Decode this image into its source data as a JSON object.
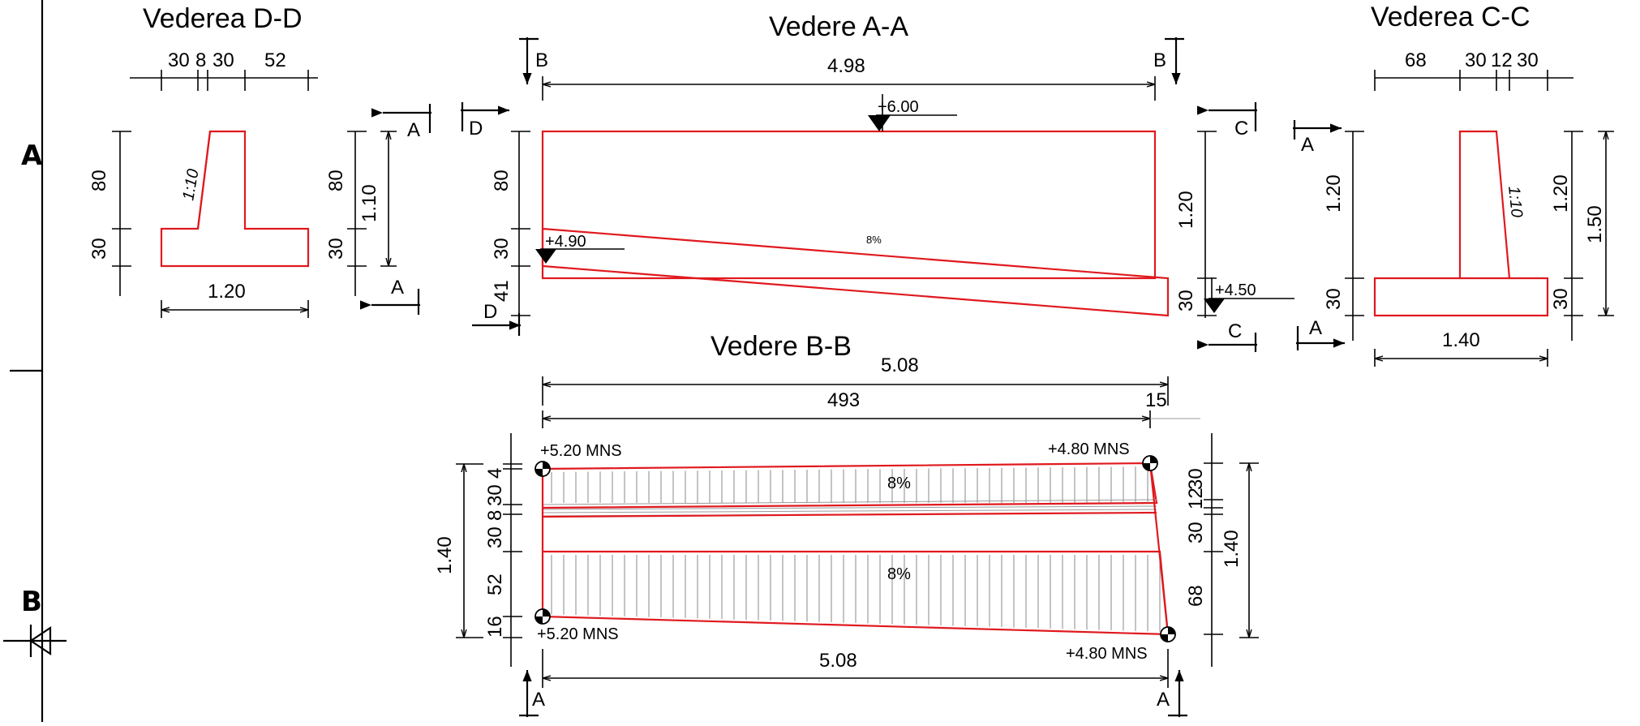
{
  "grid": {
    "label_a": "A",
    "label_b": "B"
  },
  "view_dd": {
    "title": "Vederea D-D",
    "top_dims": [
      "30",
      "8",
      "30",
      "52"
    ],
    "left_dims": [
      "80",
      "30"
    ],
    "slope": "1:10",
    "bottom_dim": "1.20",
    "right_dims": [
      "80",
      "30"
    ],
    "right_total": "1.10",
    "section_mark_top": "A",
    "section_mark_bottom": "A"
  },
  "view_aa": {
    "title": "Vedere A-A",
    "top_dim": "4.98",
    "section_b_left": "B",
    "section_b_right": "B",
    "section_d_top": "D",
    "section_d_bottom": "D",
    "section_c_top": "C",
    "section_c_bottom": "C",
    "level_top": "+6.00",
    "level_left": "+4.90",
    "level_right": "+4.50",
    "slope": "8%",
    "left_dims": [
      "80",
      "30",
      "41"
    ],
    "right_dims": [
      "1.20",
      "30"
    ]
  },
  "view_cc": {
    "title": "Vederea C-C",
    "top_dims": [
      "68",
      "30",
      "12",
      "30"
    ],
    "left_dims": [
      "1.20",
      "30"
    ],
    "slope": "1:10",
    "right_dims": [
      "1.20",
      "30"
    ],
    "right_total": "1.50",
    "bottom_dim": "1.40",
    "section_mark_top": "A",
    "section_mark_bottom": "A"
  },
  "view_bb": {
    "title": "Vedere B-B",
    "top_total": "5.08",
    "top_sub": "493",
    "top_sub2": "15",
    "level_tl": "+5.20 MNS",
    "level_tr": "+4.80 MNS",
    "level_bl": "+5.20 MNS",
    "level_br": "+4.80 MNS",
    "slope_top": "8%",
    "slope_bottom": "8%",
    "left_total": "1.40",
    "left_dims": [
      "4",
      "30",
      "8",
      "30",
      "52",
      "16"
    ],
    "right_dims": [
      "30",
      "12",
      "30",
      "68"
    ],
    "right_total": "1.40",
    "bottom_dim": "5.08",
    "section_a_left": "A",
    "section_a_right": "A"
  }
}
